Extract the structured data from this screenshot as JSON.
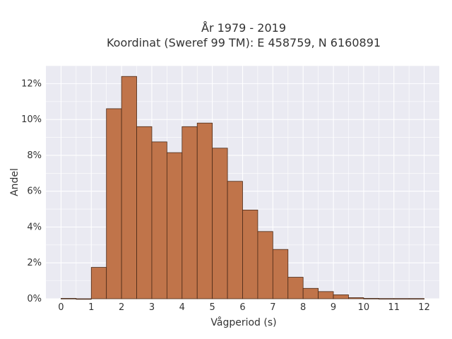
{
  "chart_data": {
    "type": "bar",
    "title_line1": "År 1979 - 2019",
    "title_line2": "Koordinat (Sweref 99 TM): E 458759, N 6160891",
    "xlabel": "Vågperiod (s)",
    "ylabel": "Andel",
    "bin_width": 0.5,
    "xlim": [
      -0.5,
      12.5
    ],
    "ylim": [
      0,
      13
    ],
    "xticks": [
      0,
      1,
      2,
      3,
      4,
      5,
      6,
      7,
      8,
      9,
      10,
      11,
      12
    ],
    "xtick_labels": [
      "0",
      "1",
      "2",
      "3",
      "4",
      "5",
      "6",
      "7",
      "8",
      "9",
      "10",
      "11",
      "12"
    ],
    "yticks": [
      0,
      2,
      4,
      6,
      8,
      10,
      12
    ],
    "ytick_labels": [
      "0%",
      "2%",
      "4%",
      "6%",
      "8%",
      "10%",
      "12%"
    ],
    "bins": [
      {
        "start": 0.0,
        "end": 0.5,
        "value": 0.02
      },
      {
        "start": 0.5,
        "end": 1.0,
        "value": 0.0
      },
      {
        "start": 1.0,
        "end": 1.5,
        "value": 1.75
      },
      {
        "start": 1.5,
        "end": 2.0,
        "value": 10.6
      },
      {
        "start": 2.0,
        "end": 2.5,
        "value": 12.4
      },
      {
        "start": 2.5,
        "end": 3.0,
        "value": 9.6
      },
      {
        "start": 3.0,
        "end": 3.5,
        "value": 8.75
      },
      {
        "start": 3.5,
        "end": 4.0,
        "value": 8.15
      },
      {
        "start": 4.0,
        "end": 4.5,
        "value": 9.6
      },
      {
        "start": 4.5,
        "end": 5.0,
        "value": 9.8
      },
      {
        "start": 5.0,
        "end": 5.5,
        "value": 8.4
      },
      {
        "start": 5.5,
        "end": 6.0,
        "value": 6.55
      },
      {
        "start": 6.0,
        "end": 6.5,
        "value": 4.95
      },
      {
        "start": 6.5,
        "end": 7.0,
        "value": 3.75
      },
      {
        "start": 7.0,
        "end": 7.5,
        "value": 2.75
      },
      {
        "start": 7.5,
        "end": 8.0,
        "value": 1.2
      },
      {
        "start": 8.0,
        "end": 8.5,
        "value": 0.58
      },
      {
        "start": 8.5,
        "end": 9.0,
        "value": 0.4
      },
      {
        "start": 9.0,
        "end": 9.5,
        "value": 0.22
      },
      {
        "start": 9.5,
        "end": 10.0,
        "value": 0.06
      },
      {
        "start": 10.0,
        "end": 10.5,
        "value": 0.02
      },
      {
        "start": 10.5,
        "end": 11.0,
        "value": 0.01
      },
      {
        "start": 11.0,
        "end": 11.5,
        "value": 0.01
      },
      {
        "start": 11.5,
        "end": 12.0,
        "value": 0.01
      }
    ],
    "colors": {
      "bar_fill": "#c0744a",
      "bar_edge": "#4a2a18",
      "plot_bg": "#eaeaf2",
      "grid": "#ffffff"
    },
    "grid": true
  }
}
